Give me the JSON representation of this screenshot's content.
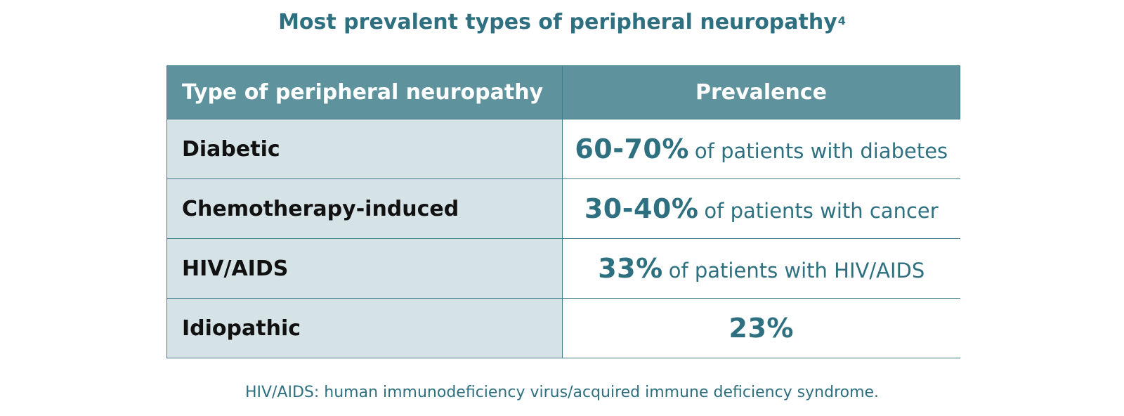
{
  "title": {
    "text": "Most prevalent types of peripheral neuropathy",
    "superscript": "4"
  },
  "table": {
    "headers": [
      "Type of peripheral neuropathy",
      "Prevalence"
    ],
    "rows": [
      {
        "type": "Diabetic",
        "percent": "60-70%",
        "description": "of patients with diabetes"
      },
      {
        "type": "Chemotherapy-induced",
        "percent": "30-40%",
        "description": "of patients with cancer"
      },
      {
        "type": "HIV/AIDS",
        "percent": "33%",
        "description": "of patients with HIV/AIDS"
      },
      {
        "type": "Idiopathic",
        "percent": "23%",
        "description": ""
      }
    ]
  },
  "footnote": "HIV/AIDS: human immunodeficiency virus/acquired immune deficiency syndrome.",
  "colors": {
    "accent_teal": "#2e7080",
    "header_bg": "#5e939e",
    "type_cell_bg": "#d5e3e6",
    "border": "#3f7d8a"
  }
}
